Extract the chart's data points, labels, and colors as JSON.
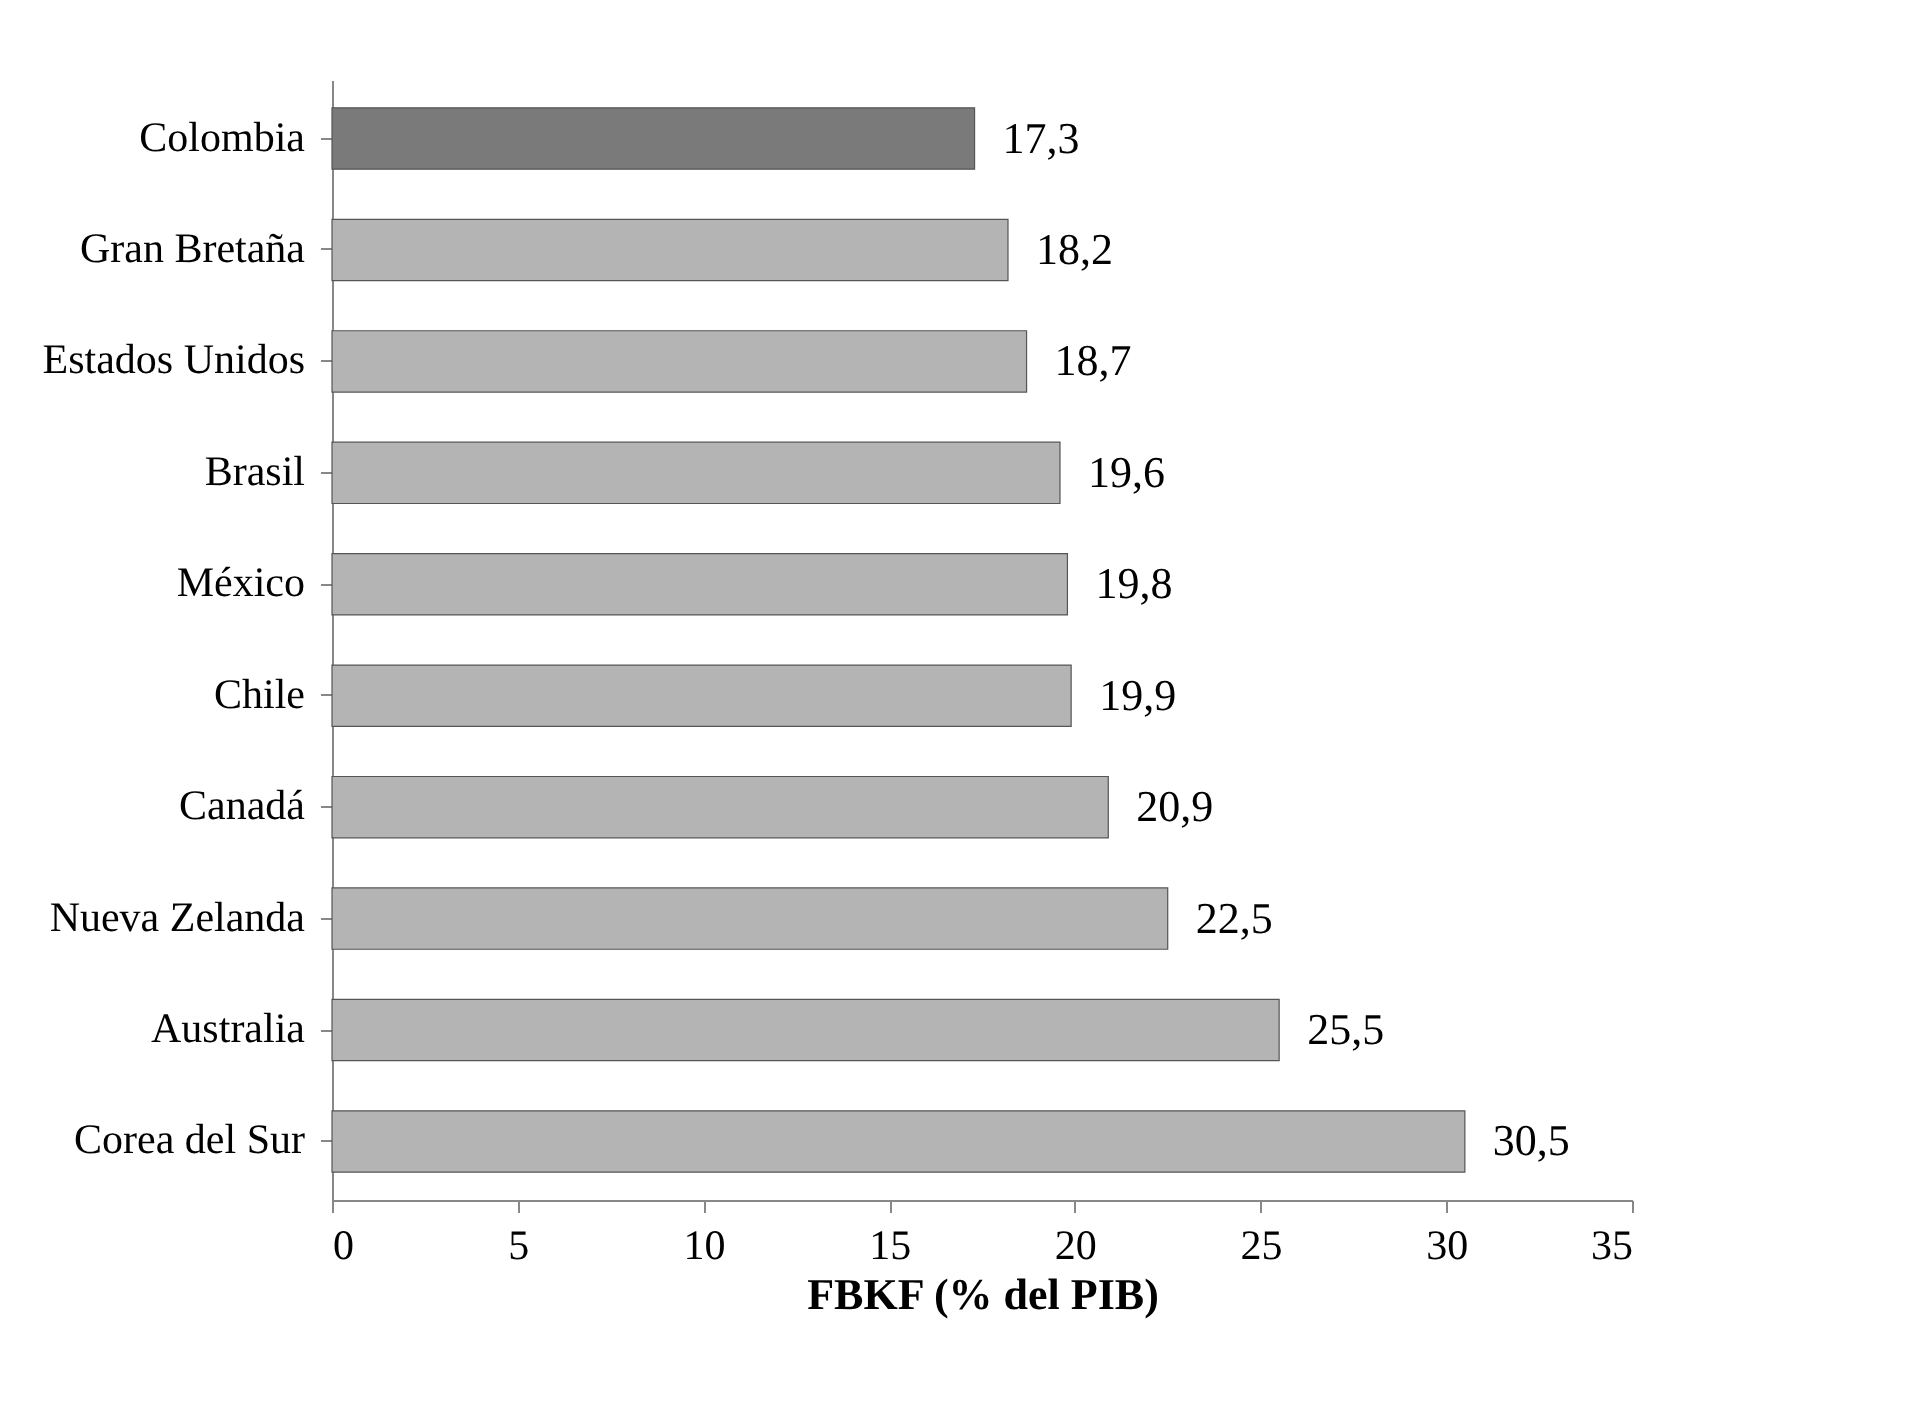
{
  "chart_data": {
    "type": "bar",
    "orientation": "horizontal",
    "xlabel": "FBKF (% del PIB)",
    "categories": [
      "Colombia",
      "Gran Bretaña",
      "Estados Unidos",
      "Brasil",
      "México",
      "Chile",
      "Canadá",
      "Nueva Zelanda",
      "Australia",
      "Corea del Sur"
    ],
    "values": [
      17.3,
      18.2,
      18.7,
      19.6,
      19.8,
      19.9,
      20.9,
      22.5,
      25.5,
      30.5
    ],
    "colors": [
      "#7a7a7a",
      "#b4b4b4",
      "#b4b4b4",
      "#b4b4b4",
      "#b4b4b4",
      "#b4b4b4",
      "#b4b4b4",
      "#b4b4b4",
      "#b4b4b4",
      "#b4b4b4"
    ],
    "value_labels": [
      "17,3",
      "18,2",
      "18,7",
      "19,6",
      "19,8",
      "19,9",
      "20,9",
      "22,5",
      "25,5",
      "30,5"
    ],
    "xlim": [
      0,
      35
    ],
    "xticks": [
      0,
      5,
      10,
      15,
      20,
      25,
      30,
      35
    ]
  }
}
